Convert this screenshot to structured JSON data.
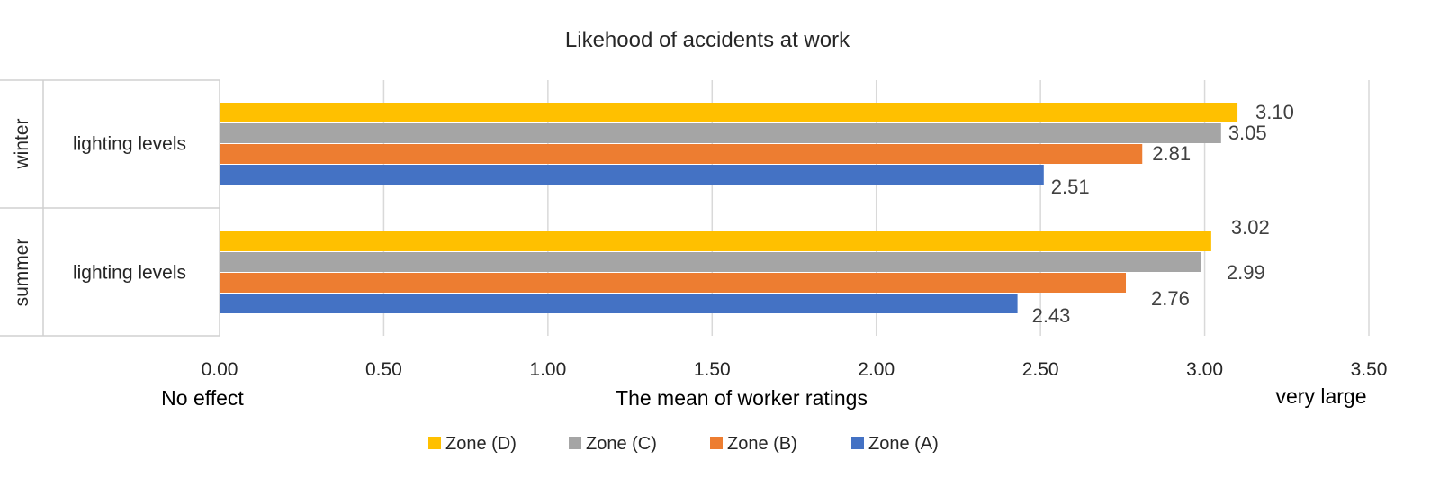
{
  "chart_data": {
    "type": "bar",
    "orientation": "horizontal",
    "title": "Likehood of accidents at work",
    "xlabel": "The mean of worker ratings",
    "xlabel_left": "No effect",
    "xlabel_right": "very large",
    "xlim": [
      0,
      3.5
    ],
    "xticks": [
      "0.00",
      "0.50",
      "1.00",
      "1.50",
      "2.00",
      "2.50",
      "3.00",
      "3.50"
    ],
    "xtick_values": [
      0,
      0.5,
      1.0,
      1.5,
      2.0,
      2.5,
      3.0,
      3.5
    ],
    "grid": true,
    "legend_position": "bottom",
    "groups": [
      {
        "group": "winter",
        "category": "lighting levels",
        "series": [
          {
            "name": "Zone (D)",
            "value": 3.1,
            "label": "3.10"
          },
          {
            "name": "Zone (C)",
            "value": 3.05,
            "label": "3.05"
          },
          {
            "name": "Zone (B)",
            "value": 2.81,
            "label": "2.81"
          },
          {
            "name": "Zone (A)",
            "value": 2.51,
            "label": "2.51"
          }
        ]
      },
      {
        "group": "summer",
        "category": "lighting levels",
        "series": [
          {
            "name": "Zone (D)",
            "value": 3.02,
            "label": "3.02"
          },
          {
            "name": "Zone (C)",
            "value": 2.99,
            "label": "2.99"
          },
          {
            "name": "Zone (B)",
            "value": 2.76,
            "label": "2.76"
          },
          {
            "name": "Zone (A)",
            "value": 2.43,
            "label": "2.43"
          }
        ]
      }
    ],
    "legend": [
      {
        "name": "Zone (D)",
        "color": "#ffc000"
      },
      {
        "name": "Zone (C)",
        "color": "#a5a5a5"
      },
      {
        "name": "Zone (B)",
        "color": "#ed7d31"
      },
      {
        "name": "Zone (A)",
        "color": "#4472c4"
      }
    ]
  }
}
